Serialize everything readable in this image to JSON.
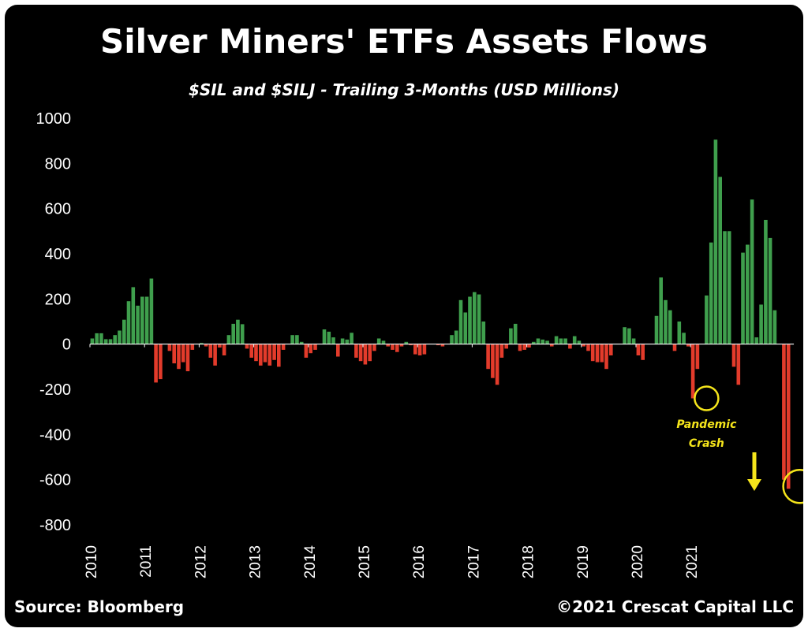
{
  "chart_data": {
    "type": "bar",
    "title": "Silver Miners' ETFs Assets Flows",
    "subtitle": "$SIL and $SILJ - Trailing 3-Months  (USD Millions)",
    "ylim": [
      -800,
      1000
    ],
    "yticks": [
      1000,
      800,
      600,
      400,
      200,
      0,
      -200,
      -400,
      -600,
      -800
    ],
    "xlabels": [
      "2010",
      "2011",
      "2012",
      "2013",
      "2014",
      "2015",
      "2016",
      "2017",
      "2018",
      "2019",
      "2020",
      "2021"
    ],
    "x_start_year": 2010,
    "months_per_bar": 1,
    "positive_color": "#3f9f4d",
    "negative_color": "#e33b2b",
    "values": [
      25,
      48,
      48,
      22,
      22,
      40,
      60,
      108,
      190,
      252,
      170,
      210,
      210,
      290,
      -170,
      -155,
      0,
      -30,
      -85,
      -110,
      -80,
      -120,
      -25,
      0,
      5,
      -10,
      -60,
      -95,
      -15,
      -50,
      40,
      90,
      108,
      88,
      -20,
      -60,
      -75,
      -95,
      -80,
      -95,
      -70,
      -100,
      -25,
      0,
      40,
      40,
      10,
      -60,
      -40,
      -25,
      0,
      65,
      55,
      30,
      -55,
      25,
      20,
      50,
      -60,
      -75,
      -90,
      -75,
      -30,
      25,
      15,
      -10,
      -25,
      -35,
      -10,
      10,
      -5,
      -45,
      -50,
      -45,
      0,
      0,
      -5,
      -10,
      0,
      40,
      60,
      195,
      140,
      210,
      230,
      220,
      100,
      -110,
      -150,
      -180,
      -60,
      -20,
      70,
      90,
      -30,
      -25,
      -15,
      10,
      25,
      20,
      15,
      -10,
      35,
      25,
      25,
      -20,
      35,
      15,
      -10,
      -30,
      -75,
      -80,
      -80,
      -110,
      -50,
      0,
      0,
      75,
      70,
      25,
      -50,
      -70,
      0,
      0,
      125,
      295,
      195,
      150,
      -30,
      100,
      50,
      -10,
      -240,
      -110,
      0,
      215,
      450,
      905,
      740,
      500,
      500,
      -100,
      -180,
      405,
      440,
      640,
      30,
      175,
      550,
      470,
      150,
      0,
      -600,
      -640
    ],
    "annotations": [
      {
        "text_lines": [
          "Pandemic",
          "Crash"
        ],
        "bar_index": 135
      },
      {
        "text_lines": [],
        "bar_index": 155
      }
    ]
  },
  "footer": {
    "source": "Source: Bloomberg",
    "copyright": "©2021 Crescat Capital LLC"
  },
  "colors": {
    "background": "#000000",
    "text": "#ffffff",
    "annotation": "#f5e51b"
  }
}
